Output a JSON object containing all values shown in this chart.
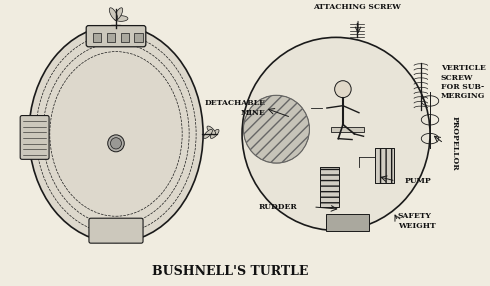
{
  "title": "BUSHNELL'S TURTLE",
  "title_fontsize": 9,
  "bg_color": "#f0ece0",
  "fig_width": 4.9,
  "fig_height": 2.86,
  "dpi": 100,
  "labels": {
    "attaching_screw": "ATTACHING SCREW",
    "detachable_mine": "DETACHABLE\nMINE",
    "verticle_screw": "VERTICLE\nSCREW\nFOR SUB-\nMERGING",
    "propellor": "PROPELLOR",
    "pump": "PUMP",
    "safety_weight": "SAFETY\nWEIGHT",
    "rudder": "RUDDER"
  },
  "label_fontsize": 5.5,
  "line_color": "#1a1a1a",
  "fill_light": "#ddd8cc",
  "fill_mid": "#ccc8bc",
  "fill_dark": "#aaa89e",
  "viewport_outer": "#b0aea8",
  "viewport_inner": "#999894"
}
